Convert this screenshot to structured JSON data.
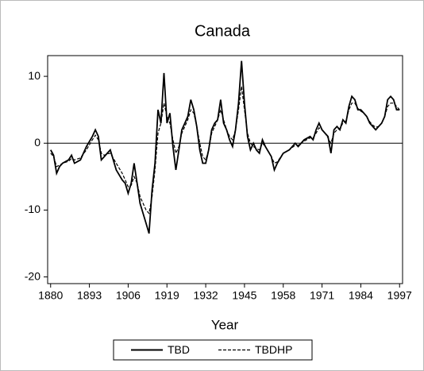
{
  "chart_data": {
    "type": "line",
    "title": "Canada",
    "x_label": "Year",
    "x": [
      1880,
      1881,
      1882,
      1883,
      1884,
      1886,
      1887,
      1888,
      1890,
      1892,
      1894,
      1895,
      1896,
      1897,
      1898,
      1899,
      1900,
      1902,
      1904,
      1905,
      1906,
      1907,
      1908,
      1909,
      1910,
      1912,
      1913,
      1914,
      1915,
      1916,
      1917,
      1918,
      1919,
      1920,
      1921,
      1922,
      1923,
      1924,
      1925,
      1926,
      1927,
      1928,
      1929,
      1930,
      1931,
      1932,
      1933,
      1934,
      1935,
      1936,
      1937,
      1938,
      1939,
      1940,
      1941,
      1942,
      1943,
      1944,
      1945,
      1946,
      1947,
      1948,
      1949,
      1950,
      1951,
      1952,
      1954,
      1955,
      1956,
      1958,
      1960,
      1962,
      1963,
      1965,
      1967,
      1968,
      1969,
      1970,
      1971,
      1972,
      1973,
      1974,
      1975,
      1976,
      1977,
      1978,
      1979,
      1980,
      1981,
      1982,
      1983,
      1984,
      1985,
      1986,
      1987,
      1988,
      1989,
      1990,
      1991,
      1992,
      1993,
      1994,
      1995,
      1996,
      1997
    ],
    "series": [
      {
        "name": "TBD",
        "color": "#000000",
        "dash": false,
        "values": [
          -1,
          -1.8,
          -4.5,
          -3.5,
          -3,
          -2.5,
          -1.8,
          -3,
          -2.5,
          -0.5,
          1,
          2,
          1,
          -2.5,
          -2,
          -1.5,
          -1,
          -4,
          -5.5,
          -6,
          -7.5,
          -6,
          -3,
          -6,
          -9,
          -12,
          -13.5,
          -7,
          -3,
          5,
          3,
          10.5,
          3,
          4.5,
          -0.5,
          -4,
          -1,
          2,
          3,
          4,
          6.5,
          5,
          2.5,
          -1,
          -3,
          -3,
          -1,
          2,
          3,
          3.5,
          6.5,
          3,
          2,
          0.5,
          -0.5,
          2,
          6,
          12.3,
          6,
          1,
          -1,
          0,
          -1,
          -1.5,
          0.5,
          -0.5,
          -2,
          -4,
          -3,
          -1.5,
          -1,
          0,
          -0.5,
          0.5,
          1,
          0.5,
          2,
          3,
          2,
          1.5,
          1,
          -1.5,
          2,
          2.5,
          2,
          3.5,
          3,
          5.5,
          7,
          6.5,
          5,
          5,
          4.5,
          4,
          3,
          2.5,
          2,
          2.5,
          3,
          4,
          6.5,
          7,
          6.5,
          5,
          5
        ]
      },
      {
        "name": "TBDHP",
        "color": "#000000",
        "dash": true,
        "values": [
          -1.5,
          -2,
          -3.5,
          -3.3,
          -3,
          -2.7,
          -2.3,
          -2.5,
          -2.2,
          -1,
          0.5,
          1.2,
          0.5,
          -1.5,
          -1.8,
          -1.6,
          -1.5,
          -3,
          -4.5,
          -5.5,
          -6.5,
          -6.3,
          -5,
          -6,
          -8,
          -10,
          -10.5,
          -8,
          -4,
          1.5,
          3,
          6,
          4,
          3,
          0.5,
          -1.5,
          -0.5,
          1.5,
          2.5,
          3.5,
          5,
          4.5,
          2.5,
          0,
          -2,
          -2.5,
          -1,
          1.5,
          2.5,
          3.5,
          5,
          3.5,
          2,
          1,
          0.5,
          2,
          5,
          8.5,
          5,
          1.5,
          0,
          -0.5,
          -0.8,
          -1,
          0,
          -0.5,
          -2,
          -3,
          -2.8,
          -1.5,
          -1,
          -0.3,
          -0.3,
          0.3,
          0.8,
          0.8,
          1.5,
          2.3,
          2,
          1.5,
          0.8,
          0,
          1.5,
          2,
          2.2,
          3,
          3.3,
          5,
          6,
          6,
          5.2,
          4.8,
          4.5,
          4,
          3.2,
          2.7,
          2.4,
          2.5,
          3,
          4,
          5.5,
          6,
          6,
          5.5,
          5
        ]
      }
    ],
    "xlim": [
      1879,
      1998
    ],
    "xticks": [
      1880,
      1893,
      1906,
      1919,
      1932,
      1945,
      1958,
      1971,
      1984,
      1997
    ],
    "ylim": [
      -21,
      13.1
    ],
    "yticks": [
      -20,
      -10,
      0,
      10
    ],
    "reference_line": 0,
    "legend": "bottom"
  }
}
